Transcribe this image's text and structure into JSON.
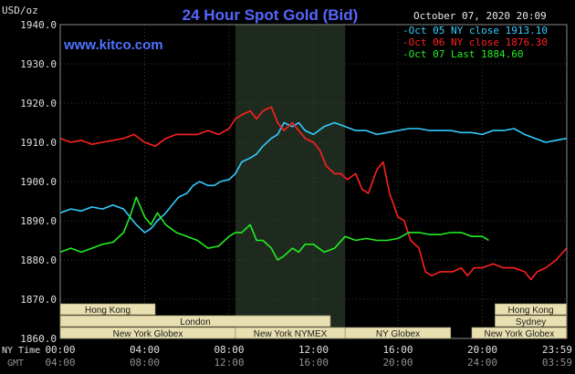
{
  "chart_data": {
    "type": "line",
    "title": "24 Hour Spot Gold (Bid)",
    "ylabel": "USD/oz",
    "brand": "www.kitco.com",
    "timestamp": "October 07, 2020 20:09",
    "ylim": [
      1860,
      1940
    ],
    "y_ticks": [
      "1940.0",
      "1930.0",
      "1920.0",
      "1910.0",
      "1900.0",
      "1890.0",
      "1880.0",
      "1870.0",
      "1860.0"
    ],
    "x_tick_labels_ny": [
      "00:00",
      "04:00",
      "08:00",
      "12:00",
      "16:00",
      "20:00",
      "23:59"
    ],
    "x_tick_labels_gmt": [
      "04:00",
      "08:00",
      "12:00",
      "16:00",
      "20:00",
      "24:00",
      "03:59"
    ],
    "x_row_label_ny": "NY Time",
    "x_row_label_gmt": "GMT",
    "highlight_window_hours": [
      8.3,
      13.5
    ],
    "legend": [
      {
        "text": "Oct 05 NY close 1913.10",
        "color": "#33ccff"
      },
      {
        "text": "Oct 06 NY close 1876.30",
        "color": "#ff2020"
      },
      {
        "text": "Oct 07 Last 1884.60",
        "color": "#22ee22"
      }
    ],
    "series": [
      {
        "name": "Oct 05",
        "color": "#33ccff",
        "x": [
          0,
          0.5,
          1,
          1.5,
          2,
          2.5,
          3,
          3.3,
          3.6,
          4,
          4.3,
          4.6,
          5,
          5.3,
          5.6,
          6,
          6.3,
          6.6,
          7,
          7.3,
          7.6,
          8,
          8.3,
          8.6,
          9,
          9.3,
          9.6,
          10,
          10.3,
          10.6,
          11,
          11.3,
          11.6,
          12,
          12.5,
          13,
          13.5,
          14,
          14.5,
          15,
          15.5,
          16,
          16.5,
          17,
          17.5,
          18,
          18.5,
          19,
          19.5,
          20,
          20.5,
          21,
          21.5,
          22,
          22.5,
          23,
          23.5,
          23.99
        ],
        "y": [
          1892,
          1893,
          1892.5,
          1893.5,
          1893,
          1894,
          1893,
          1891,
          1889,
          1887,
          1888,
          1890,
          1892,
          1894,
          1896,
          1897,
          1899,
          1900,
          1899,
          1899,
          1900,
          1900.5,
          1902,
          1905,
          1906,
          1907,
          1909,
          1911,
          1912,
          1915,
          1914,
          1915,
          1913,
          1912,
          1914,
          1915,
          1914,
          1913,
          1913,
          1912,
          1912.5,
          1913,
          1913.5,
          1913.5,
          1913,
          1913,
          1913,
          1912.5,
          1912.5,
          1912,
          1913,
          1913,
          1913.5,
          1912,
          1911,
          1910,
          1910.5,
          1911
        ]
      },
      {
        "name": "Oct 06",
        "color": "#ff2020",
        "x": [
          0,
          0.5,
          1,
          1.5,
          2,
          2.5,
          3,
          3.5,
          4,
          4.5,
          5,
          5.5,
          6,
          6.5,
          7,
          7.5,
          8,
          8.3,
          8.6,
          9,
          9.3,
          9.6,
          10,
          10.3,
          10.6,
          11,
          11.3,
          11.6,
          12,
          12.3,
          12.6,
          13,
          13.3,
          13.6,
          14,
          14.3,
          14.6,
          15,
          15.3,
          15.6,
          16,
          16.3,
          16.6,
          17,
          17.3,
          17.6,
          18,
          18.3,
          18.6,
          19,
          19.3,
          19.6,
          20,
          20.5,
          21,
          21.5,
          22,
          22.3,
          22.6,
          23,
          23.5,
          23.99
        ],
        "y": [
          1911,
          1910,
          1910.5,
          1909.5,
          1910,
          1910.5,
          1911,
          1912,
          1910,
          1909,
          1911,
          1912,
          1912,
          1912,
          1913,
          1912,
          1913.5,
          1916,
          1917,
          1918,
          1916,
          1918,
          1919,
          1915,
          1913,
          1915,
          1913,
          1911,
          1910,
          1908,
          1904,
          1902,
          1902,
          1900.5,
          1902,
          1898,
          1897,
          1903,
          1905,
          1897,
          1891,
          1890,
          1885,
          1883,
          1877,
          1876,
          1877,
          1877,
          1877,
          1878,
          1876,
          1878,
          1878,
          1879,
          1878,
          1878,
          1877,
          1875,
          1877,
          1878,
          1880,
          1883
        ]
      },
      {
        "name": "Oct 07",
        "color": "#22ee22",
        "x": [
          0,
          0.5,
          1,
          1.5,
          2,
          2.5,
          3,
          3.3,
          3.6,
          4,
          4.3,
          4.6,
          5,
          5.5,
          6,
          6.5,
          7,
          7.5,
          8,
          8.3,
          8.6,
          9,
          9.3,
          9.6,
          10,
          10.3,
          10.6,
          11,
          11.3,
          11.6,
          12,
          12.5,
          13,
          13.5,
          14,
          14.5,
          15,
          15.5,
          16,
          16.5,
          17,
          17.5,
          18,
          18.5,
          19,
          19.5,
          20,
          20.3
        ],
        "y": [
          1882,
          1883,
          1882,
          1883,
          1884,
          1884.5,
          1887,
          1891,
          1896,
          1891,
          1889,
          1892,
          1889,
          1887,
          1886,
          1885,
          1883,
          1883.5,
          1886,
          1887,
          1887,
          1889,
          1885,
          1885,
          1883,
          1880,
          1881,
          1883,
          1882,
          1884,
          1884,
          1882,
          1883,
          1886,
          1885,
          1885.5,
          1885,
          1885,
          1885.5,
          1887,
          1887,
          1886.5,
          1886.5,
          1887,
          1887,
          1886,
          1886,
          1885
        ]
      }
    ],
    "sessions_row1": [
      {
        "label": "Hong Kong",
        "start": 0,
        "end": 4.5
      },
      {
        "label": "Hong Kong",
        "start": 20.6,
        "end": 23.99
      }
    ],
    "sessions_row2": [
      {
        "label": "London",
        "start": 0,
        "end": 12.8
      },
      {
        "label": "Sydney",
        "start": 20.6,
        "end": 23.99
      }
    ],
    "sessions_row3": [
      {
        "label": "New York Globex",
        "start": 0,
        "end": 8.3
      },
      {
        "label": "New York NYMEX",
        "start": 8.3,
        "end": 13.5
      },
      {
        "label": "NY Globex",
        "start": 13.5,
        "end": 18.5
      },
      {
        "label": "New York Globex",
        "start": 19.5,
        "end": 23.99
      }
    ]
  }
}
